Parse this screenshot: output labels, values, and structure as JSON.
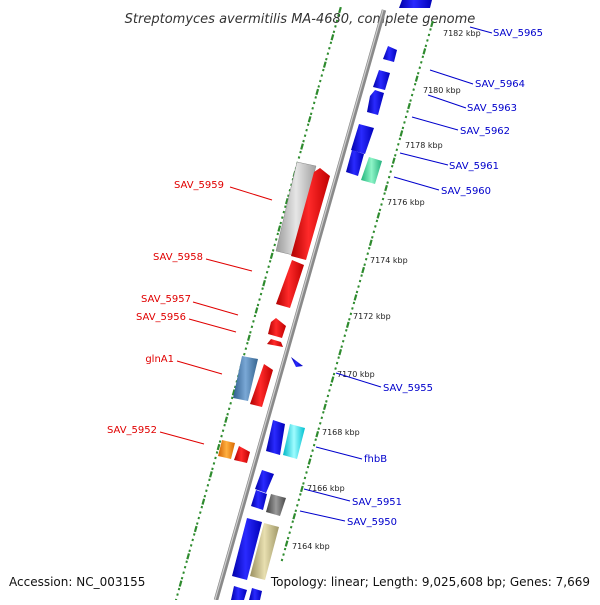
{
  "title": "Streptomyces avermitilis MA-4680, complete genome",
  "footer": {
    "accession": "Accession: NC_003155",
    "stats": "Topology: linear; Length: 9,025,608 bp; Genes: 7,669"
  },
  "colors": {
    "reverse_label": "#e00000",
    "forward_label": "#0000cc",
    "tick_marks": "#2e8b2e",
    "backbone": "#7f7f7f"
  },
  "scale_labels": [
    "7182 kbp",
    "7180 kbp",
    "7178 kbp",
    "7176 kbp",
    "7174 kbp",
    "7172 kbp",
    "7170 kbp",
    "7168 kbp",
    "7166 kbp",
    "7164 kbp"
  ],
  "reverse_labels": [
    "SAV_5959",
    "SAV_5958",
    "SAV_5957",
    "SAV_5956",
    "glnA1",
    "SAV_5952"
  ],
  "forward_labels": [
    "SAV_5965",
    "SAV_5964",
    "SAV_5963",
    "SAV_5962",
    "SAV_5961",
    "SAV_5960",
    "SAV_5955",
    "fhbB",
    "SAV_5951",
    "SAV_5950"
  ]
}
